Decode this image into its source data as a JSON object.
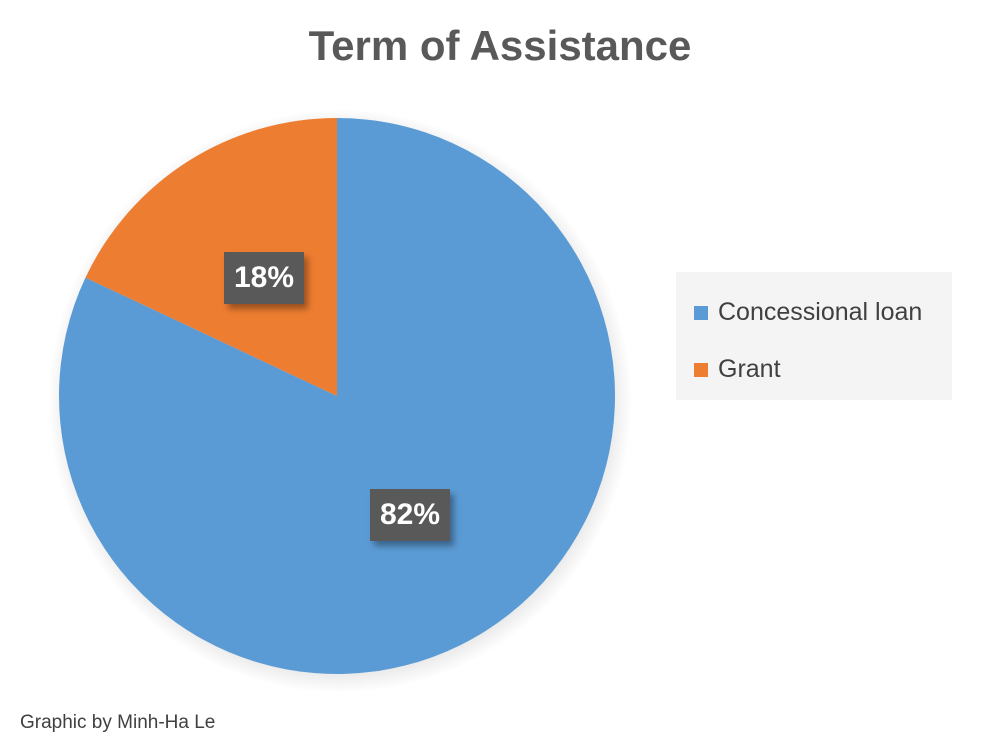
{
  "chart_data": {
    "type": "pie",
    "title": "Term of Assistance",
    "categories": [
      "Concessional loan",
      "Grant"
    ],
    "values": [
      82,
      18
    ],
    "data_labels": [
      "82%",
      "18%"
    ],
    "colors": [
      "#5b9bd5",
      "#ed7d31"
    ],
    "legend_position": "right",
    "label_box_color": "#595959"
  },
  "credit": "Graphic by Minh-Ha Le"
}
